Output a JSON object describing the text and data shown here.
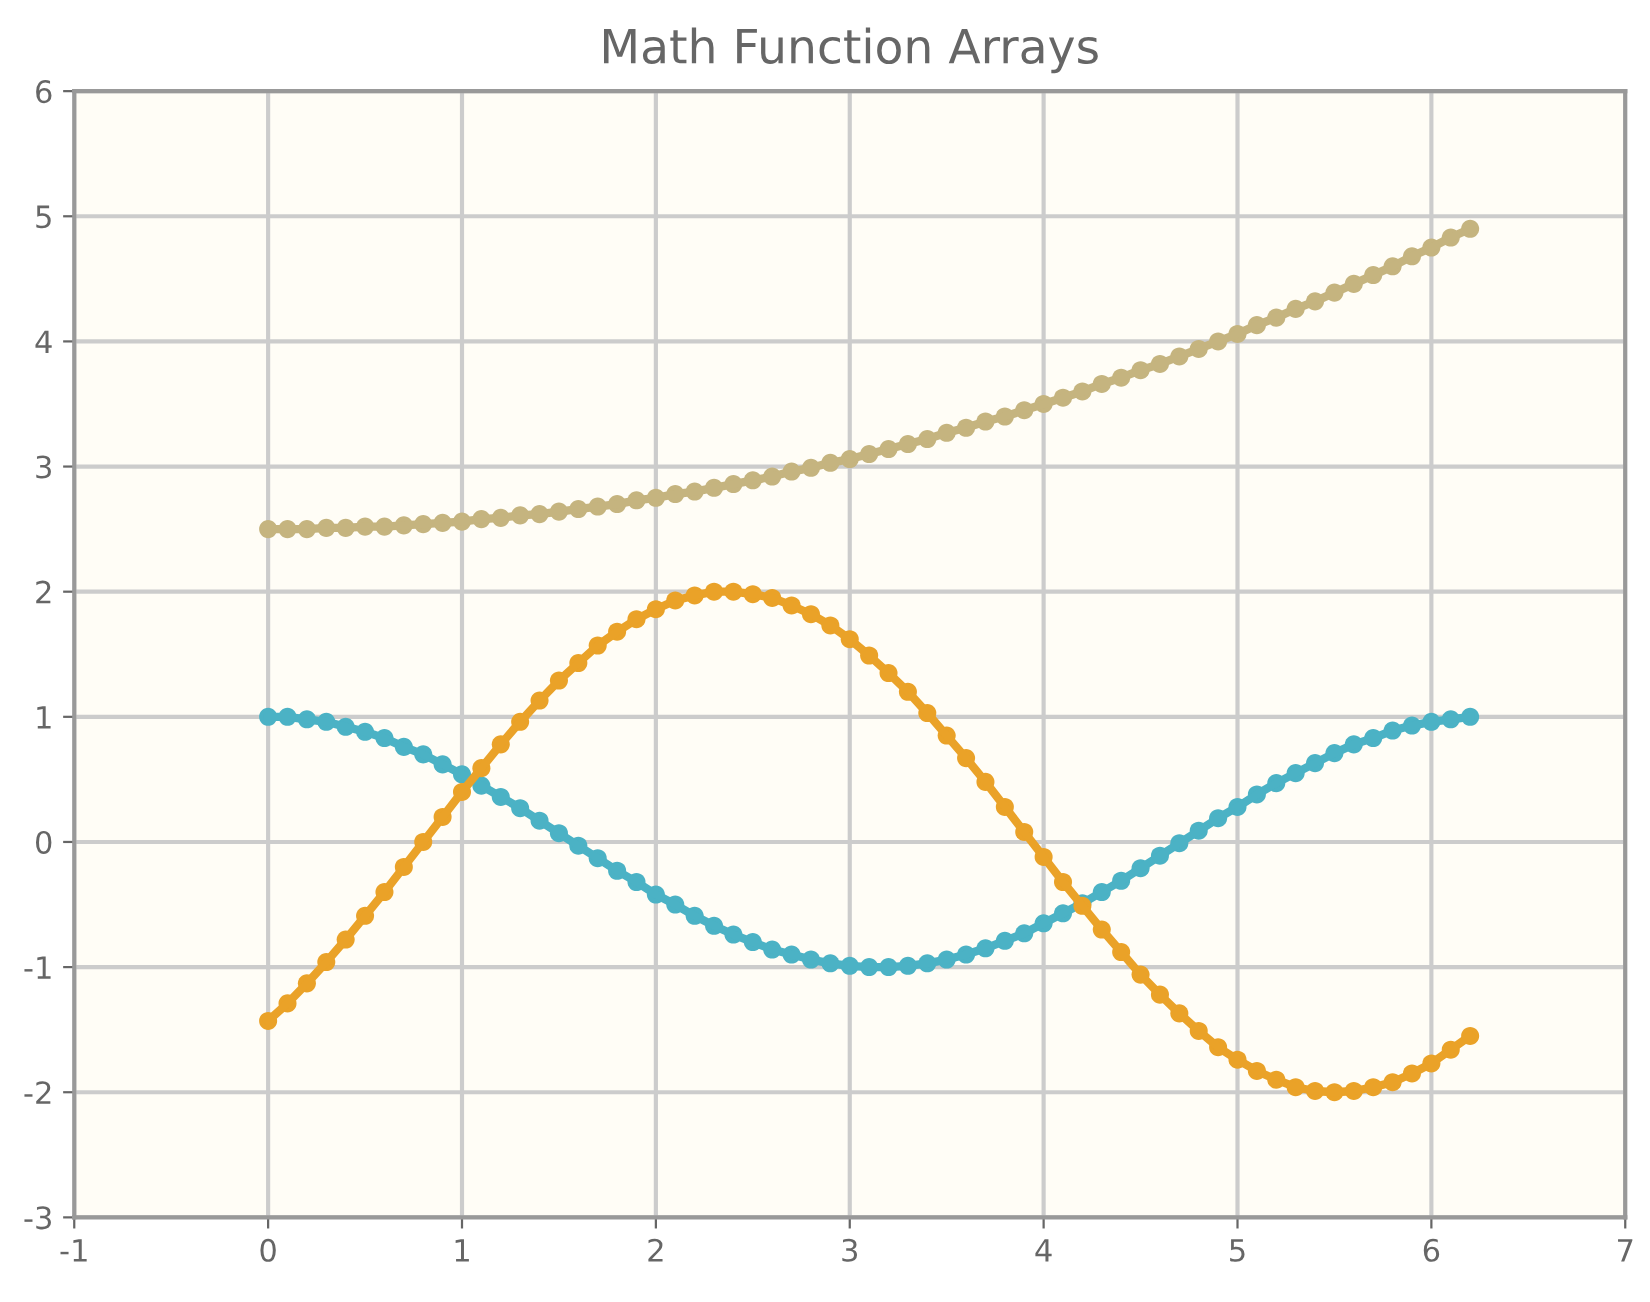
{
  "chart_data": {
    "type": "line",
    "title": "Math Function Arrays",
    "x": [
      0,
      0.1,
      0.2,
      0.3,
      0.4,
      0.5,
      0.6,
      0.7,
      0.8,
      0.9,
      1.0,
      1.1,
      1.2,
      1.3,
      1.4,
      1.5,
      1.6,
      1.7,
      1.8,
      1.9,
      2.0,
      2.1,
      2.2,
      2.3,
      2.4,
      2.5,
      2.6,
      2.7,
      2.8,
      2.9,
      3.0,
      3.1,
      3.2,
      3.3,
      3.4,
      3.5,
      3.6,
      3.7,
      3.8,
      3.9,
      4.0,
      4.1,
      4.2,
      4.3,
      4.4,
      4.5,
      4.6,
      4.7,
      4.8,
      4.9,
      5.0,
      5.1,
      5.2,
      5.3,
      5.4,
      5.5,
      5.6,
      5.7,
      5.8,
      5.9,
      6.0,
      6.1,
      6.2
    ],
    "series": [
      {
        "color": "#4bb2c5",
        "values": [
          1.0,
          1.0,
          0.98,
          0.96,
          0.92,
          0.88,
          0.83,
          0.76,
          0.7,
          0.62,
          0.54,
          0.45,
          0.36,
          0.27,
          0.17,
          0.07,
          -0.03,
          -0.13,
          -0.23,
          -0.32,
          -0.42,
          -0.5,
          -0.59,
          -0.67,
          -0.74,
          -0.8,
          -0.86,
          -0.9,
          -0.94,
          -0.97,
          -0.99,
          -1.0,
          -1.0,
          -0.99,
          -0.97,
          -0.94,
          -0.9,
          -0.85,
          -0.79,
          -0.73,
          -0.65,
          -0.57,
          -0.49,
          -0.4,
          -0.31,
          -0.21,
          -0.11,
          -0.01,
          0.09,
          0.19,
          0.28,
          0.38,
          0.47,
          0.55,
          0.63,
          0.71,
          0.78,
          0.83,
          0.89,
          0.93,
          0.96,
          0.98,
          1.0
        ]
      },
      {
        "color": "#eaa228",
        "values": [
          -1.43,
          -1.29,
          -1.13,
          -0.96,
          -0.78,
          -0.59,
          -0.4,
          -0.2,
          0.0,
          0.2,
          0.4,
          0.59,
          0.78,
          0.96,
          1.13,
          1.29,
          1.43,
          1.57,
          1.68,
          1.78,
          1.86,
          1.93,
          1.97,
          2.0,
          2.0,
          1.98,
          1.95,
          1.89,
          1.82,
          1.73,
          1.62,
          1.49,
          1.35,
          1.2,
          1.03,
          0.85,
          0.67,
          0.48,
          0.28,
          0.08,
          -0.12,
          -0.32,
          -0.51,
          -0.7,
          -0.88,
          -1.06,
          -1.22,
          -1.37,
          -1.51,
          -1.64,
          -1.74,
          -1.83,
          -1.9,
          -1.96,
          -1.99,
          -2.0,
          -1.99,
          -1.96,
          -1.92,
          -1.85,
          -1.77,
          -1.66,
          -1.55
        ]
      },
      {
        "color": "#c5b47f",
        "values": [
          2.5,
          2.5,
          2.5,
          2.51,
          2.51,
          2.52,
          2.52,
          2.53,
          2.54,
          2.55,
          2.56,
          2.58,
          2.59,
          2.61,
          2.62,
          2.64,
          2.66,
          2.68,
          2.7,
          2.73,
          2.75,
          2.78,
          2.8,
          2.83,
          2.86,
          2.89,
          2.92,
          2.96,
          2.99,
          3.03,
          3.06,
          3.1,
          3.14,
          3.18,
          3.22,
          3.27,
          3.31,
          3.36,
          3.4,
          3.45,
          3.5,
          3.55,
          3.6,
          3.66,
          3.71,
          3.77,
          3.82,
          3.88,
          3.94,
          4.0,
          4.06,
          4.13,
          4.19,
          4.26,
          4.32,
          4.39,
          4.46,
          4.53,
          4.6,
          4.68,
          4.75,
          4.83,
          4.9
        ]
      }
    ],
    "xlim": [
      -1,
      7
    ],
    "ylim": [
      -3,
      6
    ],
    "xticks": [
      -1,
      0,
      1,
      2,
      3,
      4,
      5,
      6,
      7
    ],
    "yticks": [
      -3,
      -2,
      -1,
      0,
      1,
      2,
      3,
      4,
      5,
      6
    ],
    "grid": true,
    "marker": "circle",
    "line_style": "solid"
  }
}
